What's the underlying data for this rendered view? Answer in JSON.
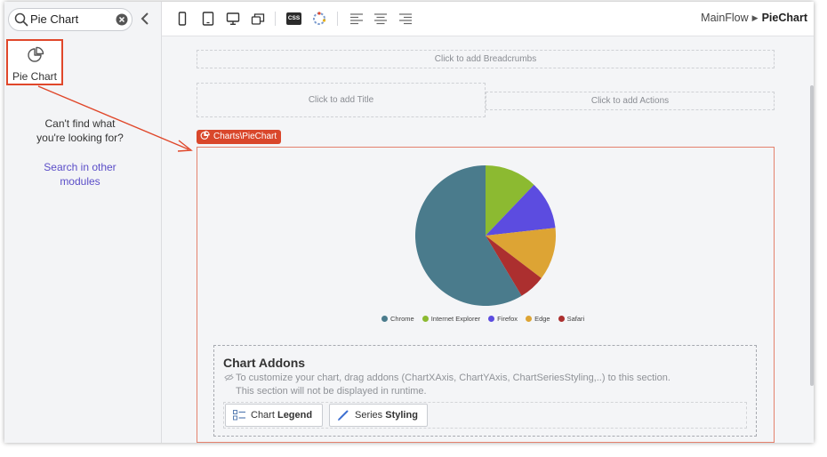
{
  "sidebar": {
    "search": {
      "value": "Pie Chart",
      "placeholder": ""
    },
    "result": {
      "label": "Pie Chart",
      "icon": "pie-chart-icon"
    },
    "not_found_line1": "Can't find what",
    "not_found_line2": "you're looking for?",
    "search_other_line1": "Search in other",
    "search_other_line2": "modules"
  },
  "toolbar": {
    "icons": [
      "phone-icon",
      "tablet-icon",
      "desktop-icon",
      "multi-screen-icon",
      "css-icon",
      "theme-icon",
      "align-left-icon",
      "align-center-icon",
      "align-right-icon"
    ],
    "css_label": "CSS",
    "breadcrumb": {
      "flow": "MainFlow",
      "screen": "PieChart"
    }
  },
  "canvas": {
    "breadcrumbs_placeholder": "Click to add Breadcrumbs",
    "title_placeholder": "Click to add Title",
    "actions_placeholder": "Click to add Actions",
    "widget_tag": "Charts\\PieChart"
  },
  "chart_data": {
    "type": "pie",
    "categories": [
      "Chrome",
      "Internet Explorer",
      "Firefox",
      "Edge",
      "Safari"
    ],
    "values": [
      58,
      12,
      11,
      12,
      6
    ],
    "colors": [
      "#4a7b8c",
      "#8cba31",
      "#5c4ce0",
      "#dda434",
      "#ac2f2f"
    ],
    "legend_position": "bottom"
  },
  "addons": {
    "title": "Chart Addons",
    "hint_line1": "To customize your chart, drag addons (ChartXAxis, ChartYAxis, ChartSeriesStyling,..) to this section.",
    "hint_line2": "This section will not be displayed in runtime.",
    "buttons": [
      {
        "prefix": "Chart",
        "bold": "Legend",
        "icon": "legend-icon"
      },
      {
        "prefix": "Series",
        "bold": "Styling",
        "icon": "brush-icon"
      }
    ]
  },
  "colors": {
    "accent": "#e0472a",
    "link": "#5b4ec8",
    "tag": "#d9472b"
  }
}
